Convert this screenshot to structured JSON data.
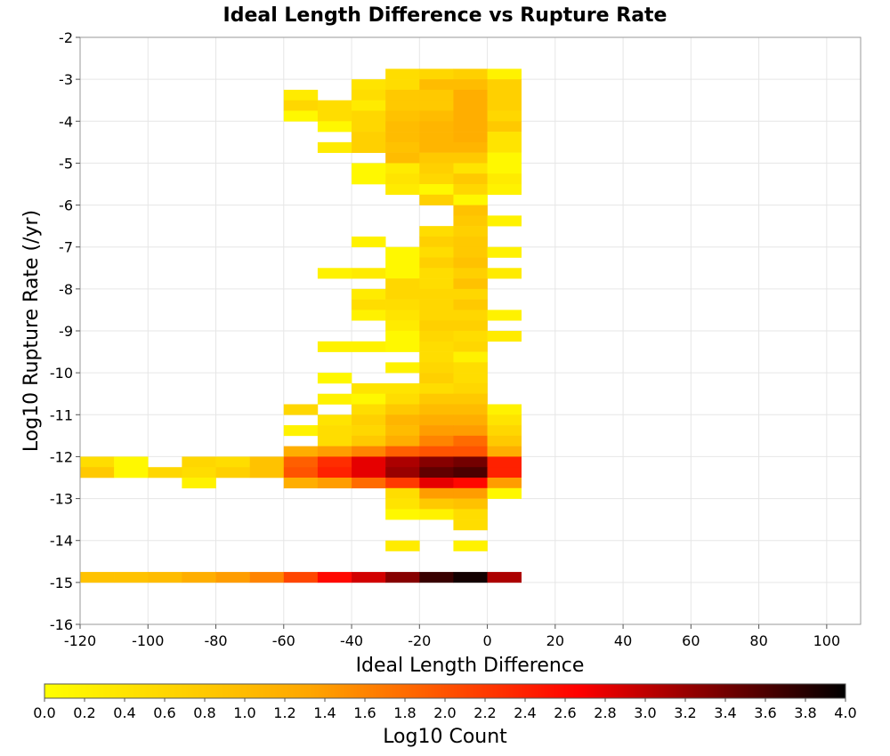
{
  "chart_data": {
    "type": "heatmap",
    "title": "Ideal Length Difference vs Rupture Rate",
    "xlabel": "Ideal Length Difference",
    "ylabel": "Log10 Rupture Rate (/yr)",
    "xlim": [
      -120,
      110
    ],
    "ylim": [
      -16,
      -2
    ],
    "x_ticks": [
      "-120",
      "-100",
      "-80",
      "-60",
      "-40",
      "-20",
      "0",
      "20",
      "40",
      "60",
      "80",
      "100"
    ],
    "y_ticks": [
      "-2",
      "-3",
      "-4",
      "-5",
      "-6",
      "-7",
      "-8",
      "-9",
      "-10",
      "-11",
      "-12",
      "-13",
      "-14",
      "-15",
      "-16"
    ],
    "grid": true,
    "bin_width_x": 10,
    "bin_height_y": 0.25,
    "colorbar": {
      "label": "Log10 Count",
      "range": [
        0,
        4
      ],
      "ticks": [
        "0.0",
        "0.2",
        "0.4",
        "0.6",
        "0.8",
        "1.0",
        "1.2",
        "1.4",
        "1.6",
        "1.8",
        "2.0",
        "2.2",
        "2.4",
        "2.6",
        "2.8",
        "3.0",
        "3.2",
        "3.4",
        "3.6",
        "3.8",
        "4.0"
      ],
      "colors": [
        "#ffff00",
        "#ffa500",
        "#ff0000",
        "#000000"
      ]
    },
    "cells": [
      {
        "x": -30,
        "y": -2.75,
        "v": 0.5
      },
      {
        "x": -20,
        "y": -2.75,
        "v": 0.6
      },
      {
        "x": -10,
        "y": -2.75,
        "v": 0.7
      },
      {
        "x": 0,
        "y": -2.75,
        "v": 0.2
      },
      {
        "x": -40,
        "y": -3.0,
        "v": 0.4
      },
      {
        "x": -30,
        "y": -3.0,
        "v": 0.5
      },
      {
        "x": -20,
        "y": -3.0,
        "v": 1.0
      },
      {
        "x": -10,
        "y": -3.0,
        "v": 1.0
      },
      {
        "x": 0,
        "y": -3.0,
        "v": 0.7
      },
      {
        "x": -60,
        "y": -3.25,
        "v": 0.3
      },
      {
        "x": -40,
        "y": -3.25,
        "v": 0.5
      },
      {
        "x": -30,
        "y": -3.25,
        "v": 0.8
      },
      {
        "x": -20,
        "y": -3.25,
        "v": 0.8
      },
      {
        "x": -10,
        "y": -3.25,
        "v": 1.2
      },
      {
        "x": 0,
        "y": -3.25,
        "v": 0.7
      },
      {
        "x": -60,
        "y": -3.5,
        "v": 0.6
      },
      {
        "x": -50,
        "y": -3.5,
        "v": 0.5
      },
      {
        "x": -40,
        "y": -3.5,
        "v": 0.3
      },
      {
        "x": -30,
        "y": -3.5,
        "v": 0.8
      },
      {
        "x": -20,
        "y": -3.5,
        "v": 0.8
      },
      {
        "x": -10,
        "y": -3.5,
        "v": 1.2
      },
      {
        "x": 0,
        "y": -3.5,
        "v": 0.7
      },
      {
        "x": -60,
        "y": -3.75,
        "v": 0.1
      },
      {
        "x": -50,
        "y": -3.75,
        "v": 0.5
      },
      {
        "x": -40,
        "y": -3.75,
        "v": 0.6
      },
      {
        "x": -30,
        "y": -3.75,
        "v": 0.9
      },
      {
        "x": -20,
        "y": -3.75,
        "v": 1.0
      },
      {
        "x": -10,
        "y": -3.75,
        "v": 1.2
      },
      {
        "x": 0,
        "y": -3.75,
        "v": 0.6
      },
      {
        "x": -50,
        "y": -4.0,
        "v": 0.1
      },
      {
        "x": -40,
        "y": -4.0,
        "v": 0.6
      },
      {
        "x": -30,
        "y": -4.0,
        "v": 1.0
      },
      {
        "x": -20,
        "y": -4.0,
        "v": 1.1
      },
      {
        "x": -10,
        "y": -4.0,
        "v": 1.2
      },
      {
        "x": 0,
        "y": -4.0,
        "v": 0.8
      },
      {
        "x": -40,
        "y": -4.25,
        "v": 0.7
      },
      {
        "x": -30,
        "y": -4.25,
        "v": 1.0
      },
      {
        "x": -20,
        "y": -4.25,
        "v": 1.1
      },
      {
        "x": -10,
        "y": -4.25,
        "v": 1.2
      },
      {
        "x": 0,
        "y": -4.25,
        "v": 0.4
      },
      {
        "x": -50,
        "y": -4.5,
        "v": 0.3
      },
      {
        "x": -40,
        "y": -4.5,
        "v": 0.7
      },
      {
        "x": -30,
        "y": -4.5,
        "v": 0.9
      },
      {
        "x": -20,
        "y": -4.5,
        "v": 1.1
      },
      {
        "x": -10,
        "y": -4.5,
        "v": 1.1
      },
      {
        "x": 0,
        "y": -4.5,
        "v": 0.4
      },
      {
        "x": -30,
        "y": -4.75,
        "v": 1.0
      },
      {
        "x": -20,
        "y": -4.75,
        "v": 0.8
      },
      {
        "x": -10,
        "y": -4.75,
        "v": 0.8
      },
      {
        "x": 0,
        "y": -4.75,
        "v": 0.1
      },
      {
        "x": -40,
        "y": -5.0,
        "v": 0.1
      },
      {
        "x": -30,
        "y": -5.0,
        "v": 0.3
      },
      {
        "x": -20,
        "y": -5.0,
        "v": 0.7
      },
      {
        "x": -10,
        "y": -5.0,
        "v": 0.4
      },
      {
        "x": 0,
        "y": -5.0,
        "v": 0.1
      },
      {
        "x": -40,
        "y": -5.25,
        "v": 0.1
      },
      {
        "x": -30,
        "y": -5.25,
        "v": 0.4
      },
      {
        "x": -20,
        "y": -5.25,
        "v": 0.6
      },
      {
        "x": -10,
        "y": -5.25,
        "v": 0.8
      },
      {
        "x": 0,
        "y": -5.25,
        "v": 0.3
      },
      {
        "x": -30,
        "y": -5.5,
        "v": 0.3
      },
      {
        "x": -20,
        "y": -5.5,
        "v": 0.1
      },
      {
        "x": -10,
        "y": -5.5,
        "v": 0.6
      },
      {
        "x": 0,
        "y": -5.5,
        "v": 0.2
      },
      {
        "x": -20,
        "y": -5.75,
        "v": 0.7
      },
      {
        "x": -10,
        "y": -5.75,
        "v": 0.1
      },
      {
        "x": -10,
        "y": -6.0,
        "v": 0.9
      },
      {
        "x": -10,
        "y": -6.25,
        "v": 0.8
      },
      {
        "x": 0,
        "y": -6.25,
        "v": 0.2
      },
      {
        "x": -20,
        "y": -6.5,
        "v": 0.5
      },
      {
        "x": -10,
        "y": -6.5,
        "v": 0.7
      },
      {
        "x": -40,
        "y": -6.75,
        "v": 0.2
      },
      {
        "x": -20,
        "y": -6.75,
        "v": 0.7
      },
      {
        "x": -10,
        "y": -6.75,
        "v": 0.8
      },
      {
        "x": -30,
        "y": -7.0,
        "v": 0.1
      },
      {
        "x": -20,
        "y": -7.0,
        "v": 0.5
      },
      {
        "x": -10,
        "y": -7.0,
        "v": 0.8
      },
      {
        "x": 0,
        "y": -7.0,
        "v": 0.2
      },
      {
        "x": -30,
        "y": -7.25,
        "v": 0.1
      },
      {
        "x": -20,
        "y": -7.25,
        "v": 0.7
      },
      {
        "x": -10,
        "y": -7.25,
        "v": 0.9
      },
      {
        "x": -50,
        "y": -7.5,
        "v": 0.2
      },
      {
        "x": -40,
        "y": -7.5,
        "v": 0.3
      },
      {
        "x": -30,
        "y": -7.5,
        "v": 0.1
      },
      {
        "x": -20,
        "y": -7.5,
        "v": 0.5
      },
      {
        "x": -10,
        "y": -7.5,
        "v": 0.7
      },
      {
        "x": 0,
        "y": -7.5,
        "v": 0.3
      },
      {
        "x": -30,
        "y": -7.75,
        "v": 0.6
      },
      {
        "x": -20,
        "y": -7.75,
        "v": 0.5
      },
      {
        "x": -10,
        "y": -7.75,
        "v": 0.9
      },
      {
        "x": -40,
        "y": -8.0,
        "v": 0.3
      },
      {
        "x": -30,
        "y": -8.0,
        "v": 0.6
      },
      {
        "x": -20,
        "y": -8.0,
        "v": 0.6
      },
      {
        "x": -10,
        "y": -8.0,
        "v": 0.6
      },
      {
        "x": -40,
        "y": -8.25,
        "v": 0.5
      },
      {
        "x": -30,
        "y": -8.25,
        "v": 0.5
      },
      {
        "x": -20,
        "y": -8.25,
        "v": 0.6
      },
      {
        "x": -10,
        "y": -8.25,
        "v": 0.8
      },
      {
        "x": -40,
        "y": -8.5,
        "v": 0.2
      },
      {
        "x": -30,
        "y": -8.5,
        "v": 0.4
      },
      {
        "x": -20,
        "y": -8.5,
        "v": 0.6
      },
      {
        "x": -10,
        "y": -8.5,
        "v": 0.6
      },
      {
        "x": 0,
        "y": -8.5,
        "v": 0.2
      },
      {
        "x": -30,
        "y": -8.75,
        "v": 0.3
      },
      {
        "x": -20,
        "y": -8.75,
        "v": 0.7
      },
      {
        "x": -10,
        "y": -8.75,
        "v": 0.7
      },
      {
        "x": -30,
        "y": -9.0,
        "v": 0.1
      },
      {
        "x": -20,
        "y": -9.0,
        "v": 0.6
      },
      {
        "x": -10,
        "y": -9.0,
        "v": 0.5
      },
      {
        "x": 0,
        "y": -9.0,
        "v": 0.3
      },
      {
        "x": -50,
        "y": -9.25,
        "v": 0.2
      },
      {
        "x": -40,
        "y": -9.25,
        "v": 0.2
      },
      {
        "x": -30,
        "y": -9.25,
        "v": 0.1
      },
      {
        "x": -20,
        "y": -9.25,
        "v": 0.5
      },
      {
        "x": -10,
        "y": -9.25,
        "v": 0.6
      },
      {
        "x": -20,
        "y": -9.5,
        "v": 0.5
      },
      {
        "x": -10,
        "y": -9.5,
        "v": 0.2
      },
      {
        "x": -30,
        "y": -9.75,
        "v": 0.2
      },
      {
        "x": -20,
        "y": -9.75,
        "v": 0.6
      },
      {
        "x": -10,
        "y": -9.75,
        "v": 0.5
      },
      {
        "x": -50,
        "y": -10.0,
        "v": 0.1
      },
      {
        "x": -20,
        "y": -10.0,
        "v": 0.7
      },
      {
        "x": -10,
        "y": -10.0,
        "v": 0.5
      },
      {
        "x": -40,
        "y": -10.25,
        "v": 0.4
      },
      {
        "x": -30,
        "y": -10.25,
        "v": 0.4
      },
      {
        "x": -20,
        "y": -10.25,
        "v": 0.5
      },
      {
        "x": -10,
        "y": -10.25,
        "v": 0.6
      },
      {
        "x": -50,
        "y": -10.5,
        "v": 0.2
      },
      {
        "x": -40,
        "y": -10.5,
        "v": 0.1
      },
      {
        "x": -30,
        "y": -10.5,
        "v": 0.5
      },
      {
        "x": -20,
        "y": -10.5,
        "v": 0.8
      },
      {
        "x": -10,
        "y": -10.5,
        "v": 0.8
      },
      {
        "x": -60,
        "y": -10.75,
        "v": 0.6
      },
      {
        "x": -40,
        "y": -10.75,
        "v": 0.5
      },
      {
        "x": -30,
        "y": -10.75,
        "v": 0.8
      },
      {
        "x": -20,
        "y": -10.75,
        "v": 1.0
      },
      {
        "x": -10,
        "y": -10.75,
        "v": 1.0
      },
      {
        "x": 0,
        "y": -10.75,
        "v": 0.2
      },
      {
        "x": -50,
        "y": -11.0,
        "v": 0.4
      },
      {
        "x": -40,
        "y": -11.0,
        "v": 0.7
      },
      {
        "x": -30,
        "y": -11.0,
        "v": 1.1
      },
      {
        "x": -20,
        "y": -11.0,
        "v": 1.2
      },
      {
        "x": -10,
        "y": -11.0,
        "v": 1.2
      },
      {
        "x": 0,
        "y": -11.0,
        "v": 0.4
      },
      {
        "x": -60,
        "y": -11.25,
        "v": 0.2
      },
      {
        "x": -50,
        "y": -11.25,
        "v": 0.5
      },
      {
        "x": -40,
        "y": -11.25,
        "v": 0.6
      },
      {
        "x": -30,
        "y": -11.25,
        "v": 1.0
      },
      {
        "x": -20,
        "y": -11.25,
        "v": 1.4
      },
      {
        "x": -10,
        "y": -11.25,
        "v": 1.4
      },
      {
        "x": 0,
        "y": -11.25,
        "v": 0.6
      },
      {
        "x": -50,
        "y": -11.5,
        "v": 0.5
      },
      {
        "x": -40,
        "y": -11.5,
        "v": 0.8
      },
      {
        "x": -30,
        "y": -11.5,
        "v": 1.2
      },
      {
        "x": -20,
        "y": -11.5,
        "v": 1.6
      },
      {
        "x": -10,
        "y": -11.5,
        "v": 1.8
      },
      {
        "x": 0,
        "y": -11.5,
        "v": 0.8
      },
      {
        "x": -60,
        "y": -11.75,
        "v": 1.2
      },
      {
        "x": -50,
        "y": -11.75,
        "v": 1.4
      },
      {
        "x": -40,
        "y": -11.75,
        "v": 1.6
      },
      {
        "x": -30,
        "y": -11.75,
        "v": 1.9
      },
      {
        "x": -20,
        "y": -11.75,
        "v": 2.0
      },
      {
        "x": -10,
        "y": -11.75,
        "v": 2.0
      },
      {
        "x": 0,
        "y": -11.75,
        "v": 1.2
      },
      {
        "x": -120,
        "y": -12.0,
        "v": 0.5
      },
      {
        "x": -110,
        "y": -12.0,
        "v": 0.1
      },
      {
        "x": -90,
        "y": -12.0,
        "v": 0.6
      },
      {
        "x": -80,
        "y": -12.0,
        "v": 0.5
      },
      {
        "x": -70,
        "y": -12.0,
        "v": 0.9
      },
      {
        "x": -60,
        "y": -12.0,
        "v": 1.9
      },
      {
        "x": -50,
        "y": -12.0,
        "v": 2.3
      },
      {
        "x": -40,
        "y": -12.0,
        "v": 2.8
      },
      {
        "x": -30,
        "y": -12.0,
        "v": 3.1
      },
      {
        "x": -20,
        "y": -12.0,
        "v": 3.3
      },
      {
        "x": -10,
        "y": -12.0,
        "v": 3.4
      },
      {
        "x": 0,
        "y": -12.0,
        "v": 2.4
      },
      {
        "x": -120,
        "y": -12.25,
        "v": 0.8
      },
      {
        "x": -110,
        "y": -12.25,
        "v": 0.1
      },
      {
        "x": -100,
        "y": -12.25,
        "v": 0.6
      },
      {
        "x": -90,
        "y": -12.25,
        "v": 0.5
      },
      {
        "x": -80,
        "y": -12.25,
        "v": 0.7
      },
      {
        "x": -70,
        "y": -12.25,
        "v": 0.9
      },
      {
        "x": -60,
        "y": -12.25,
        "v": 2.0
      },
      {
        "x": -50,
        "y": -12.25,
        "v": 2.4
      },
      {
        "x": -40,
        "y": -12.25,
        "v": 2.8
      },
      {
        "x": -30,
        "y": -12.25,
        "v": 3.2
      },
      {
        "x": -20,
        "y": -12.25,
        "v": 3.5
      },
      {
        "x": -10,
        "y": -12.25,
        "v": 3.6
      },
      {
        "x": 0,
        "y": -12.25,
        "v": 2.4
      },
      {
        "x": -90,
        "y": -12.5,
        "v": 0.2
      },
      {
        "x": -60,
        "y": -12.5,
        "v": 1.2
      },
      {
        "x": -50,
        "y": -12.5,
        "v": 1.4
      },
      {
        "x": -40,
        "y": -12.5,
        "v": 1.8
      },
      {
        "x": -30,
        "y": -12.5,
        "v": 2.2
      },
      {
        "x": -20,
        "y": -12.5,
        "v": 2.8
      },
      {
        "x": -10,
        "y": -12.5,
        "v": 2.6
      },
      {
        "x": 0,
        "y": -12.5,
        "v": 1.4
      },
      {
        "x": -30,
        "y": -12.75,
        "v": 0.5
      },
      {
        "x": -20,
        "y": -12.75,
        "v": 1.4
      },
      {
        "x": -10,
        "y": -12.75,
        "v": 1.4
      },
      {
        "x": 0,
        "y": -12.75,
        "v": 0.1
      },
      {
        "x": -30,
        "y": -13.0,
        "v": 0.4
      },
      {
        "x": -20,
        "y": -13.0,
        "v": 0.8
      },
      {
        "x": -10,
        "y": -13.0,
        "v": 0.9
      },
      {
        "x": -30,
        "y": -13.25,
        "v": 0.1
      },
      {
        "x": -20,
        "y": -13.25,
        "v": 0.2
      },
      {
        "x": -10,
        "y": -13.25,
        "v": 0.5
      },
      {
        "x": -10,
        "y": -13.5,
        "v": 0.5
      },
      {
        "x": -30,
        "y": -14.0,
        "v": 0.3
      },
      {
        "x": -10,
        "y": -14.0,
        "v": 0.2
      },
      {
        "x": -120,
        "y": -14.75,
        "v": 0.9
      },
      {
        "x": -110,
        "y": -14.75,
        "v": 0.9
      },
      {
        "x": -100,
        "y": -14.75,
        "v": 1.0
      },
      {
        "x": -90,
        "y": -14.75,
        "v": 1.2
      },
      {
        "x": -80,
        "y": -14.75,
        "v": 1.4
      },
      {
        "x": -70,
        "y": -14.75,
        "v": 1.6
      },
      {
        "x": -60,
        "y": -14.75,
        "v": 2.1
      },
      {
        "x": -50,
        "y": -14.75,
        "v": 2.6
      },
      {
        "x": -40,
        "y": -14.75,
        "v": 2.9
      },
      {
        "x": -30,
        "y": -14.75,
        "v": 3.3
      },
      {
        "x": -20,
        "y": -14.75,
        "v": 3.7
      },
      {
        "x": -10,
        "y": -14.75,
        "v": 3.9
      },
      {
        "x": 0,
        "y": -14.75,
        "v": 3.1
      }
    ]
  }
}
